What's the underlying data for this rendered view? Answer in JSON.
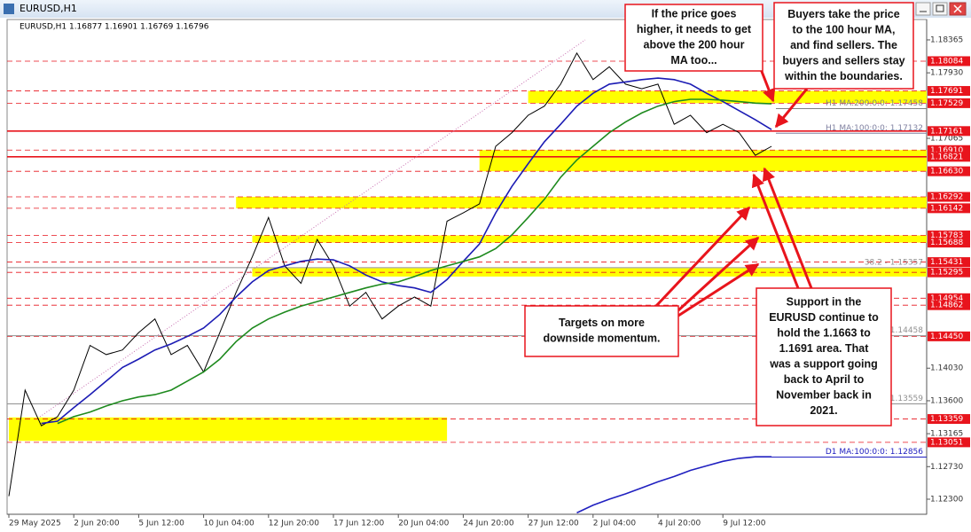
{
  "chart_data": {
    "type": "line",
    "title": "EURUSD,H1",
    "info": "EURUSD,H1  1.16877 1.16901 1.16769 1.16796",
    "categories": [
      "29 May 2025",
      null,
      null,
      null,
      "2 Jun 20:00",
      null,
      null,
      null,
      "5 Jun 12:00",
      null,
      null,
      null,
      "10 Jun 04:00",
      null,
      null,
      null,
      "12 Jun 20:00",
      null,
      null,
      null,
      "17 Jun 12:00",
      null,
      null,
      null,
      "20 Jun 04:00",
      null,
      null,
      null,
      "24 Jun 20:00",
      null,
      null,
      null,
      "27 Jun 12:00",
      null,
      null,
      null,
      "2 Jul 04:00",
      null,
      null,
      null,
      "4 Jul 20:00",
      null,
      null,
      null,
      "9 Jul 12:00",
      null,
      null,
      null
    ],
    "series": [
      {
        "color": "#000000",
        "values": [
          1.1234,
          1.1374,
          1.1327,
          1.1339,
          1.1374,
          1.1433,
          1.1421,
          1.1427,
          1.145,
          1.1468,
          1.1421,
          1.1433,
          1.1398,
          1.145,
          1.1503,
          1.155,
          1.1602,
          1.1538,
          1.1515,
          1.1573,
          1.1538,
          1.1485,
          1.1503,
          1.1468,
          1.1485,
          1.1497,
          1.1485,
          1.1597,
          1.1608,
          1.162,
          1.1696,
          1.1714,
          1.1737,
          1.1749,
          1.1778,
          1.1819,
          1.1784,
          1.1801,
          1.1778,
          1.1772,
          1.1778,
          1.1725,
          1.1737,
          1.1714,
          1.1725,
          1.1714,
          1.1684,
          1.1696
        ]
      },
      {
        "color": "#1c1cb4",
        "values": [
          null,
          null,
          1.133,
          1.1333,
          1.1351,
          1.1368,
          1.1386,
          1.1404,
          1.1415,
          1.1427,
          1.1435,
          1.1445,
          1.1456,
          1.1474,
          1.1497,
          1.1517,
          1.1532,
          1.1538,
          1.1544,
          1.1547,
          1.1546,
          1.1538,
          1.1526,
          1.1517,
          1.1512,
          1.1509,
          1.1503,
          1.152,
          1.1544,
          1.1567,
          1.1608,
          1.1643,
          1.1673,
          1.1702,
          1.1725,
          1.1749,
          1.1766,
          1.1778,
          1.1781,
          1.1784,
          1.1786,
          1.1784,
          1.1778,
          1.1766,
          1.1755,
          1.1743,
          1.1731,
          1.1718
        ]
      },
      {
        "color": "#1e8a1e",
        "values": [
          null,
          null,
          null,
          1.133,
          1.1339,
          1.1345,
          1.1353,
          1.136,
          1.1365,
          1.1368,
          1.1374,
          1.1386,
          1.1398,
          1.1415,
          1.1438,
          1.1456,
          1.1468,
          1.1477,
          1.1485,
          1.1491,
          1.1497,
          1.1503,
          1.1509,
          1.1514,
          1.1517,
          1.1524,
          1.1532,
          1.1538,
          1.1544,
          1.155,
          1.1561,
          1.1579,
          1.1602,
          1.1626,
          1.1655,
          1.1678,
          1.1696,
          1.1714,
          1.1728,
          1.174,
          1.1749,
          1.1755,
          1.1758,
          1.1758,
          1.1757,
          1.1755,
          1.1753,
          1.1752
        ]
      },
      {
        "color": "#2020c0",
        "values": [
          null,
          null,
          null,
          null,
          null,
          null,
          null,
          null,
          null,
          null,
          null,
          null,
          null,
          null,
          null,
          null,
          null,
          null,
          null,
          null,
          null,
          null,
          null,
          null,
          null,
          null,
          null,
          null,
          null,
          null,
          null,
          null,
          null,
          null,
          null,
          1.1212,
          1.1222,
          1.123,
          1.1237,
          1.1245,
          1.1253,
          1.126,
          1.1268,
          1.1274,
          1.128,
          1.1284,
          1.1286,
          1.1286
        ]
      }
    ],
    "ylim": [
      1.12101,
      1.18634
    ],
    "yticks": [
      1.18365,
      {
        "value": 1.1793,
        "label": "1.17930"
      },
      1.17065,
      {
        "value": 1.1403,
        "label": "1.14030"
      },
      {
        "value": 1.136,
        "label": "1.13600"
      },
      1.13165,
      {
        "value": 1.1273,
        "label": "1.12730"
      },
      {
        "value": 1.123,
        "label": "1.12300"
      }
    ],
    "levels": [
      {
        "value": 1.18084,
        "label": "1.18084",
        "style": "dashed"
      },
      {
        "value": 1.17691,
        "label": "1.17691",
        "style": "dashed"
      },
      {
        "value": 1.17529,
        "label": "1.17529",
        "style": "dashed"
      },
      {
        "value": 1.17161,
        "label": "1.17161",
        "style": "solid"
      },
      {
        "value": 1.1691,
        "label": "1.16910",
        "style": "dashed"
      },
      {
        "value": 1.16821,
        "label": "1.16821",
        "style": "solid"
      },
      {
        "value": 1.1663,
        "label": "1.16630",
        "style": "dashed"
      },
      {
        "value": 1.16292,
        "label": "1.16292",
        "style": "dashed"
      },
      {
        "value": 1.16142,
        "label": "1.16142",
        "style": "dashed"
      },
      {
        "value": 1.15783,
        "label": "1.15783",
        "style": "dashed"
      },
      {
        "value": 1.15688,
        "label": "1.15688",
        "style": "dashed"
      },
      {
        "value": 1.15431,
        "label": "1.15431",
        "style": "dashed"
      },
      {
        "value": 1.15295,
        "label": "1.15295",
        "style": "dashed"
      },
      {
        "value": 1.14954,
        "label": "1.14954",
        "style": "dashed"
      },
      {
        "value": 1.14862,
        "label": "1.14862",
        "style": "dashed"
      },
      {
        "value": 1.1445,
        "label": "1.14450",
        "style": "dashed"
      },
      {
        "value": 1.13359,
        "label": "1.13359",
        "style": "dashed"
      },
      {
        "value": 1.13051,
        "label": "1.13051",
        "style": "dashed"
      }
    ],
    "zones": [
      {
        "low": 1.17529,
        "high": 1.17691,
        "from": 32
      },
      {
        "low": 1.1663,
        "high": 1.1691,
        "from": 29
      },
      {
        "low": 1.16142,
        "high": 1.16292,
        "from": 14
      },
      {
        "low": 1.15688,
        "high": 1.15783,
        "from": 15
      },
      {
        "low": 1.1524,
        "high": 1.1535,
        "from": 15
      },
      {
        "low": 1.1307,
        "high": 1.1338,
        "from": 0,
        "to": 27
      }
    ],
    "indicator_labels": [
      {
        "text": "H1 MA:200:0:0: 1.17458",
        "value": 1.17458,
        "color": "#808080"
      },
      {
        "text": "H1 MA:100:0:0: 1.17132",
        "value": 1.17132,
        "color": "#8080a0"
      },
      {
        "text": "38.2 - 1.15357",
        "value": 1.15357,
        "color": "#909090"
      },
      {
        "text": ".0 - 1.14458",
        "value": 1.14458,
        "color": "#909090"
      },
      {
        "text": "8 - 1.13559",
        "value": 1.13559,
        "color": "#909090"
      },
      {
        "text": "D1 MA:100:0:0: 1.12856",
        "value": 1.12856,
        "color": "#2020c0"
      }
    ],
    "annotations": [
      {
        "lines": [
          "If the price goes",
          "higher, it needs to get",
          "above the 200 hour",
          "MA too..."
        ]
      },
      {
        "lines": [
          "Buyers take the price",
          "to the 100 hour MA,",
          "and find sellers. The",
          "buyers and sellers stay",
          "within the boundaries."
        ]
      },
      {
        "lines": [
          "Targets on more",
          "downside momentum."
        ]
      },
      {
        "lines": [
          "Support in the",
          "EURUSD continue to",
          "hold the 1.1663 to",
          "1.1691 area.  That",
          "was a support going",
          "back to April to",
          "November back in",
          "2021."
        ]
      }
    ]
  }
}
